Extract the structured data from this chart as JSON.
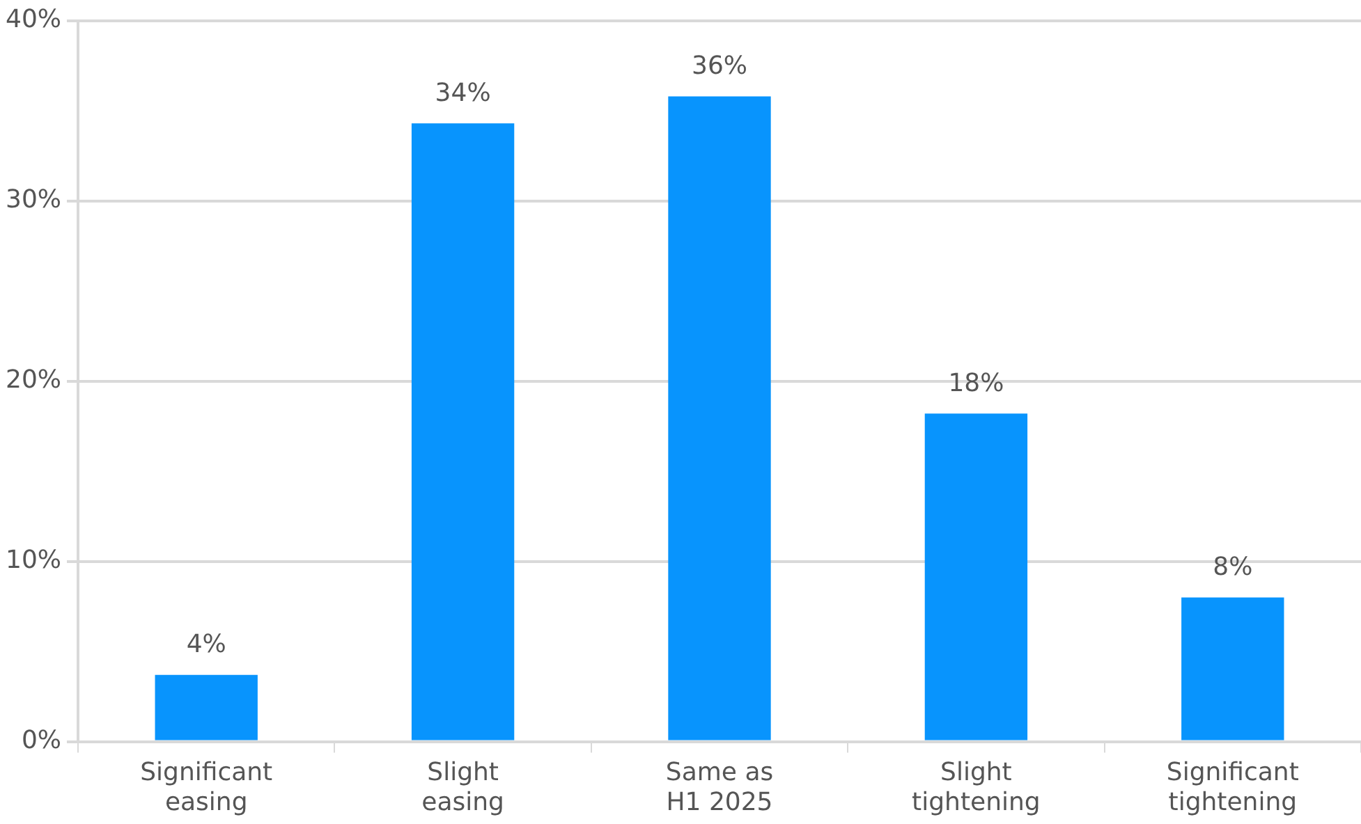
{
  "chart_data": {
    "type": "bar",
    "categories": [
      "Significant\neasing",
      "Slight\neasing",
      "Same as\nH1 2025",
      "Slight\ntightening",
      "Significant\ntightening"
    ],
    "values": [
      3.7,
      34.3,
      35.8,
      18.2,
      8.0
    ],
    "value_labels": [
      "4%",
      "34%",
      "36%",
      "18%",
      "8%"
    ],
    "color": "#0894fd",
    "ylim": [
      0,
      40
    ],
    "yticks": [
      {
        "value": 0,
        "label": "0%"
      },
      {
        "value": 10,
        "label": "10%"
      },
      {
        "value": 20,
        "label": "20%"
      },
      {
        "value": 30,
        "label": "30%"
      },
      {
        "value": 40,
        "label": "40%"
      }
    ],
    "grid": "y",
    "legend": false
  }
}
